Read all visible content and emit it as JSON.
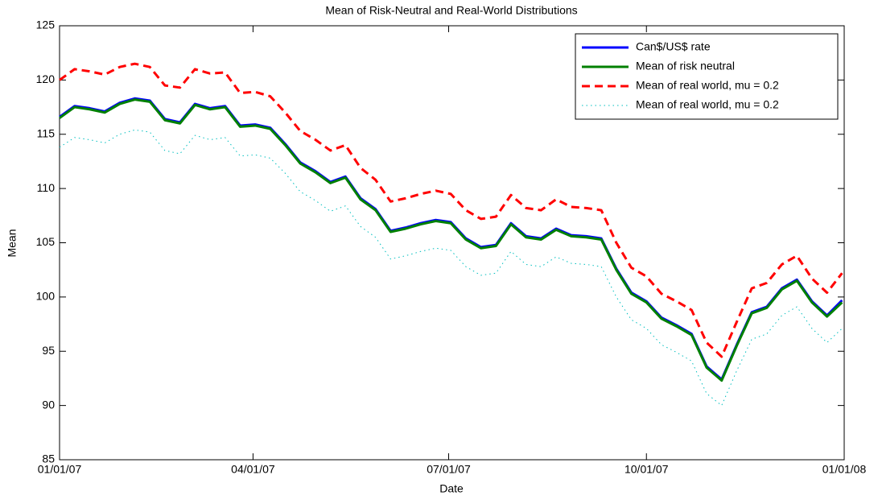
{
  "chart_data": {
    "type": "line",
    "title": "Mean of Risk-Neutral and Real-World Distributions",
    "x_label": "Date",
    "y_label": "Mean",
    "x": [
      "01/01/07",
      "01/08/07",
      "01/15/07",
      "01/22/07",
      "01/29/07",
      "02/05/07",
      "02/12/07",
      "02/19/07",
      "02/26/07",
      "03/05/07",
      "03/12/07",
      "03/19/07",
      "03/26/07",
      "04/02/07",
      "04/09/07",
      "04/16/07",
      "04/23/07",
      "04/30/07",
      "05/07/07",
      "05/14/07",
      "05/21/07",
      "05/28/07",
      "06/04/07",
      "06/11/07",
      "06/18/07",
      "06/25/07",
      "07/02/07",
      "07/09/07",
      "07/16/07",
      "07/23/07",
      "07/30/07",
      "08/06/07",
      "08/13/07",
      "08/20/07",
      "08/27/07",
      "09/03/07",
      "09/10/07",
      "09/17/07",
      "09/24/07",
      "10/01/07",
      "10/08/07",
      "10/15/07",
      "10/22/07",
      "10/29/07",
      "11/05/07",
      "11/12/07",
      "11/19/07",
      "11/26/07",
      "12/03/07",
      "12/10/07",
      "12/17/07",
      "12/24/07",
      "12/31/07"
    ],
    "xlim": [
      "01/01/07",
      "01/01/08"
    ],
    "xticks": [
      "01/01/07",
      "04/01/07",
      "07/01/07",
      "10/01/07",
      "01/01/08"
    ],
    "ylim": [
      85,
      125
    ],
    "yticks": [
      85,
      90,
      95,
      100,
      105,
      110,
      115,
      120,
      125
    ],
    "grid": false,
    "legend": "upper right",
    "series": [
      {
        "name": "Can$/US$ rate",
        "color": "#0000ff",
        "style": "solid",
        "width": 3,
        "values": [
          116.6,
          117.6,
          117.4,
          117.1,
          117.9,
          118.3,
          118.1,
          116.4,
          116.1,
          117.8,
          117.4,
          117.6,
          115.8,
          115.9,
          115.6,
          114.1,
          112.4,
          111.6,
          110.6,
          111.1,
          109.1,
          108.1,
          106.1,
          106.4,
          106.8,
          107.1,
          106.9,
          105.4,
          104.6,
          104.8,
          106.8,
          105.6,
          105.4,
          106.3,
          105.7,
          105.6,
          105.4,
          102.6,
          100.4,
          99.6,
          98.1,
          97.4,
          96.6,
          93.6,
          92.4,
          95.6,
          98.6,
          99.1,
          100.8,
          101.6,
          99.6,
          98.3,
          99.7
        ]
      },
      {
        "name": "Mean of risk neutral",
        "color": "#008000",
        "style": "solid",
        "width": 3,
        "values": [
          116.5,
          117.5,
          117.3,
          117.0,
          117.8,
          118.2,
          118.0,
          116.3,
          116.0,
          117.7,
          117.3,
          117.5,
          115.7,
          115.8,
          115.5,
          114.0,
          112.3,
          111.5,
          110.5,
          111.0,
          109.0,
          108.0,
          106.0,
          106.3,
          106.7,
          107.0,
          106.8,
          105.3,
          104.5,
          104.7,
          106.7,
          105.5,
          105.3,
          106.2,
          105.6,
          105.5,
          105.3,
          102.5,
          100.3,
          99.5,
          98.0,
          97.3,
          96.5,
          93.5,
          92.3,
          95.5,
          98.5,
          99.0,
          100.7,
          101.5,
          99.5,
          98.2,
          99.5
        ]
      },
      {
        "name": "Mean of real world, mu = 0.2",
        "color": "#ff0000",
        "style": "dashed",
        "width": 3,
        "values": [
          120.0,
          121.0,
          120.8,
          120.5,
          121.2,
          121.5,
          121.2,
          119.5,
          119.3,
          121.0,
          120.6,
          120.7,
          118.8,
          118.9,
          118.5,
          117.0,
          115.3,
          114.5,
          113.5,
          114.0,
          111.9,
          110.8,
          108.8,
          109.1,
          109.5,
          109.8,
          109.5,
          108.0,
          107.2,
          107.4,
          109.4,
          108.2,
          108.0,
          109.0,
          108.3,
          108.2,
          108.0,
          105.0,
          102.7,
          101.9,
          100.3,
          99.6,
          98.8,
          95.8,
          94.5,
          97.7,
          100.8,
          101.3,
          103.0,
          103.8,
          101.7,
          100.4,
          102.2
        ]
      },
      {
        "name": "Mean of real world, mu = 0.2",
        "color": "#00bfbf",
        "style": "dotted",
        "width": 1,
        "values": [
          113.8,
          114.7,
          114.5,
          114.2,
          115.0,
          115.4,
          115.2,
          113.5,
          113.2,
          114.9,
          114.5,
          114.7,
          113.0,
          113.1,
          112.8,
          111.4,
          109.7,
          108.9,
          107.9,
          108.4,
          106.5,
          105.5,
          103.5,
          103.8,
          104.2,
          104.5,
          104.3,
          102.8,
          102.0,
          102.2,
          104.2,
          103.0,
          102.8,
          103.7,
          103.1,
          103.0,
          102.8,
          100.0,
          97.9,
          97.1,
          95.6,
          94.9,
          94.1,
          91.1,
          90.0,
          93.2,
          96.1,
          96.6,
          98.3,
          99.1,
          97.1,
          95.8,
          97.1
        ]
      }
    ]
  }
}
